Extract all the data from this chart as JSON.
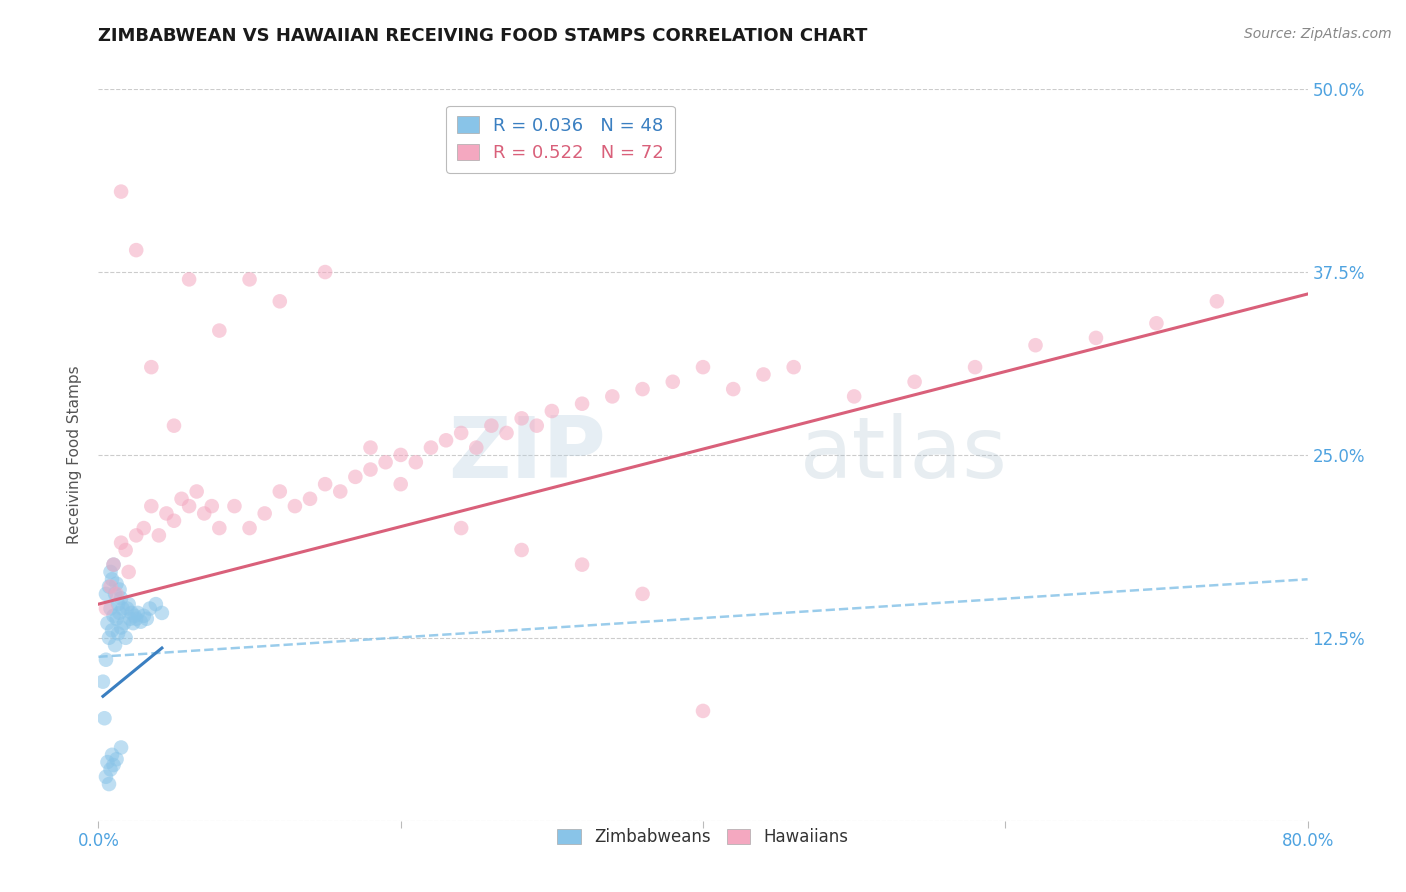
{
  "title": "ZIMBABWEAN VS HAWAIIAN RECEIVING FOOD STAMPS CORRELATION CHART",
  "source": "Source: ZipAtlas.com",
  "ylabel": "Receiving Food Stamps",
  "watermark_zip": "ZIP",
  "watermark_atlas": "atlas",
  "legend_entry_1": "R = 0.036   N = 48",
  "legend_entry_2": "R = 0.522   N = 72",
  "legend_labels": [
    "Zimbabweans",
    "Hawaiians"
  ],
  "xlim": [
    0.0,
    0.8
  ],
  "ylim": [
    0.0,
    0.5
  ],
  "xticks": [
    0.0,
    0.2,
    0.4,
    0.6,
    0.8
  ],
  "xtick_labels": [
    "0.0%",
    "",
    "",
    "",
    "80.0%"
  ],
  "yticks": [
    0.0,
    0.125,
    0.25,
    0.375,
    0.5
  ],
  "ytick_labels_right": [
    "",
    "12.5%",
    "25.0%",
    "37.5%",
    "50.0%"
  ],
  "blue_scatter_x": [
    0.003,
    0.004,
    0.005,
    0.005,
    0.006,
    0.007,
    0.007,
    0.008,
    0.008,
    0.009,
    0.009,
    0.01,
    0.01,
    0.011,
    0.011,
    0.012,
    0.012,
    0.013,
    0.013,
    0.014,
    0.014,
    0.015,
    0.015,
    0.016,
    0.017,
    0.018,
    0.019,
    0.02,
    0.021,
    0.022,
    0.023,
    0.024,
    0.025,
    0.026,
    0.028,
    0.03,
    0.032,
    0.034,
    0.038,
    0.042,
    0.005,
    0.006,
    0.007,
    0.008,
    0.009,
    0.01,
    0.012,
    0.015
  ],
  "blue_scatter_y": [
    0.095,
    0.07,
    0.11,
    0.155,
    0.135,
    0.16,
    0.125,
    0.145,
    0.17,
    0.13,
    0.165,
    0.14,
    0.175,
    0.12,
    0.155,
    0.138,
    0.162,
    0.128,
    0.148,
    0.142,
    0.158,
    0.132,
    0.152,
    0.145,
    0.135,
    0.125,
    0.145,
    0.148,
    0.138,
    0.142,
    0.135,
    0.14,
    0.138,
    0.142,
    0.136,
    0.14,
    0.138,
    0.145,
    0.148,
    0.142,
    0.03,
    0.04,
    0.025,
    0.035,
    0.045,
    0.038,
    0.042,
    0.05
  ],
  "pink_scatter_x": [
    0.005,
    0.008,
    0.01,
    0.012,
    0.015,
    0.018,
    0.02,
    0.025,
    0.03,
    0.035,
    0.04,
    0.045,
    0.05,
    0.055,
    0.06,
    0.065,
    0.07,
    0.075,
    0.08,
    0.09,
    0.1,
    0.11,
    0.12,
    0.13,
    0.14,
    0.15,
    0.16,
    0.17,
    0.18,
    0.19,
    0.2,
    0.21,
    0.22,
    0.23,
    0.24,
    0.25,
    0.26,
    0.27,
    0.28,
    0.29,
    0.3,
    0.32,
    0.34,
    0.36,
    0.38,
    0.4,
    0.42,
    0.44,
    0.46,
    0.5,
    0.54,
    0.58,
    0.62,
    0.66,
    0.7,
    0.74,
    0.015,
    0.025,
    0.035,
    0.05,
    0.06,
    0.08,
    0.1,
    0.12,
    0.15,
    0.18,
    0.2,
    0.24,
    0.28,
    0.32,
    0.36,
    0.4
  ],
  "pink_scatter_y": [
    0.145,
    0.16,
    0.175,
    0.155,
    0.19,
    0.185,
    0.17,
    0.195,
    0.2,
    0.215,
    0.195,
    0.21,
    0.205,
    0.22,
    0.215,
    0.225,
    0.21,
    0.215,
    0.2,
    0.215,
    0.2,
    0.21,
    0.225,
    0.215,
    0.22,
    0.23,
    0.225,
    0.235,
    0.24,
    0.245,
    0.25,
    0.245,
    0.255,
    0.26,
    0.265,
    0.255,
    0.27,
    0.265,
    0.275,
    0.27,
    0.28,
    0.285,
    0.29,
    0.295,
    0.3,
    0.31,
    0.295,
    0.305,
    0.31,
    0.29,
    0.3,
    0.31,
    0.325,
    0.33,
    0.34,
    0.355,
    0.43,
    0.39,
    0.31,
    0.27,
    0.37,
    0.335,
    0.37,
    0.355,
    0.375,
    0.255,
    0.23,
    0.2,
    0.185,
    0.175,
    0.155,
    0.075
  ],
  "blue_solid_line_x": [
    0.003,
    0.042
  ],
  "blue_solid_line_y": [
    0.085,
    0.118
  ],
  "blue_dash_line_x": [
    0.0,
    0.8
  ],
  "blue_dash_line_y": [
    0.112,
    0.165
  ],
  "pink_solid_line_x": [
    0.0,
    0.8
  ],
  "pink_solid_line_y": [
    0.148,
    0.36
  ],
  "blue_scatter_color": "#89c4e8",
  "pink_scatter_color": "#f4a8c0",
  "blue_line_color": "#3a7fc1",
  "blue_dash_color": "#89c4e8",
  "pink_line_color": "#d9607a",
  "background_color": "#ffffff",
  "grid_color": "#cccccc",
  "title_color": "#1a1a1a",
  "axis_label_color": "#555555",
  "tick_color": "#4fa3e0",
  "source_color": "#888888"
}
